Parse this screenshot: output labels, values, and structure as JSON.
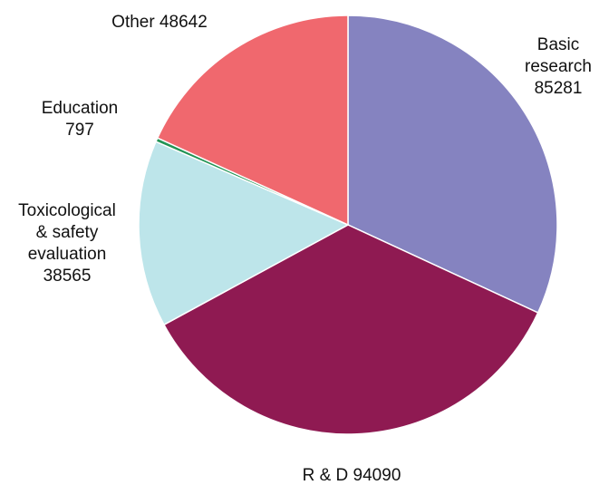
{
  "chart_data": {
    "type": "pie",
    "title": "",
    "start_angle_deg": 0,
    "direction": "clockwise",
    "slices": [
      {
        "label": "Basic research",
        "value": 85281,
        "color": "#8583c0"
      },
      {
        "label": "R & D",
        "value": 94090,
        "color": "#8f1a52"
      },
      {
        "label": "Toxicological & safety evaluation",
        "value": 38565,
        "color": "#bde5ea"
      },
      {
        "label": "Education",
        "value": 797,
        "color": "#229354"
      },
      {
        "label": "Other",
        "value": 48642,
        "color": "#f0686e"
      }
    ],
    "labels": [
      {
        "lines": [
          "Basic",
          "research",
          "85281"
        ],
        "anchor": "middle"
      },
      {
        "lines": [
          "R & D 94090"
        ],
        "anchor": "middle"
      },
      {
        "lines": [
          "Toxicological",
          "& safety",
          "evaluation",
          "38565"
        ],
        "anchor": "middle"
      },
      {
        "lines": [
          "Education",
          "797"
        ],
        "anchor": "middle"
      },
      {
        "lines": [
          "Other 48642"
        ],
        "anchor": "middle"
      }
    ]
  }
}
